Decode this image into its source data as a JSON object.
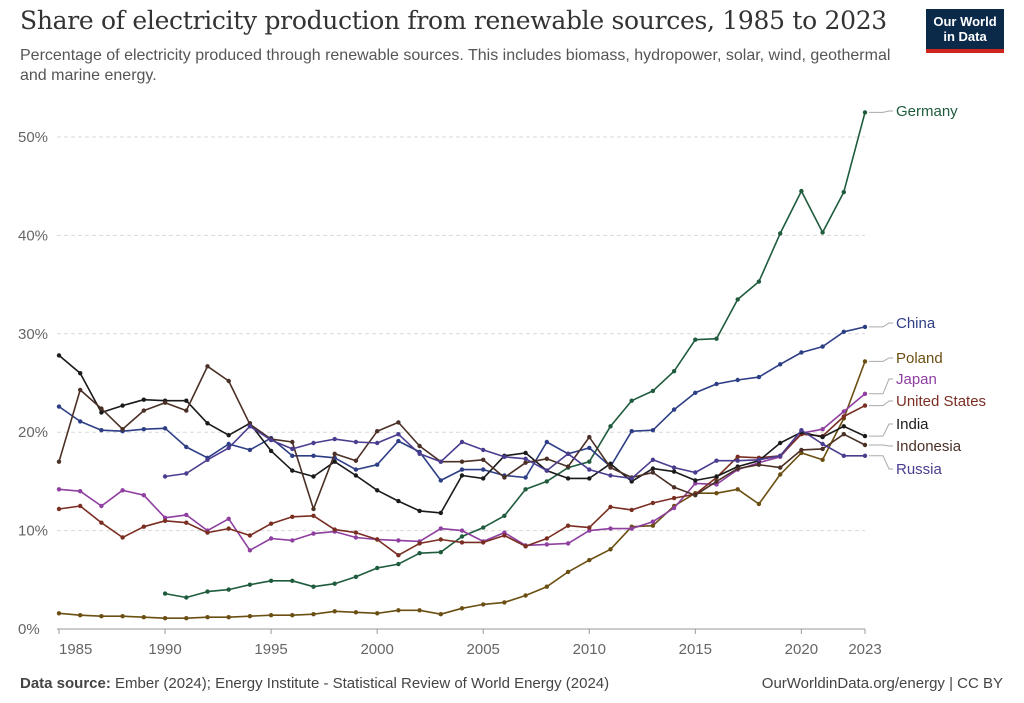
{
  "header": {
    "title": "Share of electricity production from renewable sources, 1985 to 2023",
    "subtitle": "Percentage of electricity produced through renewable sources. This includes biomass, hydropower, solar, wind, geothermal and marine energy.",
    "logo_line1": "Our World",
    "logo_line2": "in Data"
  },
  "footer": {
    "source_label": "Data source:",
    "source_text": " Ember (2024); Energy Institute - Statistical Review of World Energy (2024)",
    "credit": "OurWorldinData.org/energy | CC BY"
  },
  "colors": {
    "grid": "#d9d9d9",
    "axis": "#999999",
    "logo_bg": "#0b2a4a",
    "logo_accent": "#ce261e"
  },
  "chart_data": {
    "type": "line",
    "title": "Share of electricity production from renewable sources, 1985 to 2023",
    "ylim": [
      0,
      55
    ],
    "xlim": [
      1985,
      2023
    ],
    "y_ticks": [
      0,
      10,
      20,
      30,
      40,
      50
    ],
    "y_tick_labels": [
      "0%",
      "10%",
      "20%",
      "30%",
      "40%",
      "50%"
    ],
    "x_ticks": [
      1985,
      1990,
      1995,
      2000,
      2005,
      2010,
      2015,
      2020,
      2023
    ],
    "x_tick_labels": [
      "1985",
      "1990",
      "1995",
      "2000",
      "2005",
      "2010",
      "2015",
      "2020",
      "2023"
    ],
    "grid": "horizontal dashed",
    "legend": "right end-of-line labels",
    "series": [
      {
        "name": "Germany",
        "color": "#1f5c3d",
        "x": [
          1990,
          1991,
          1992,
          1993,
          1994,
          1995,
          1996,
          1997,
          1998,
          1999,
          2000,
          2001,
          2002,
          2003,
          2004,
          2005,
          2006,
          2007,
          2008,
          2009,
          2010,
          2011,
          2012,
          2013,
          2014,
          2015,
          2016,
          2017,
          2018,
          2019,
          2020,
          2021,
          2022,
          2023
        ],
        "values": [
          3.6,
          3.2,
          3.8,
          4.0,
          4.5,
          4.9,
          4.9,
          4.3,
          4.6,
          5.3,
          6.2,
          6.6,
          7.7,
          7.8,
          9.4,
          10.3,
          11.5,
          14.2,
          15.0,
          16.4,
          17.0,
          20.6,
          23.2,
          24.2,
          26.2,
          29.4,
          29.5,
          33.5,
          35.3,
          40.2,
          44.5,
          40.3,
          44.4,
          52.5
        ]
      },
      {
        "name": "China",
        "color": "#2d3e85",
        "x": [
          1985,
          1986,
          1987,
          1988,
          1989,
          1990,
          1991,
          1992,
          1993,
          1994,
          1995,
          1996,
          1997,
          1998,
          1999,
          2000,
          2001,
          2002,
          2003,
          2004,
          2005,
          2006,
          2007,
          2008,
          2009,
          2010,
          2011,
          2012,
          2013,
          2014,
          2015,
          2016,
          2017,
          2018,
          2019,
          2020,
          2021,
          2022,
          2023
        ],
        "values": [
          22.6,
          21.1,
          20.2,
          20.1,
          20.3,
          20.4,
          18.5,
          17.4,
          18.8,
          18.2,
          19.4,
          17.6,
          17.6,
          17.4,
          16.2,
          16.7,
          19.1,
          18.0,
          15.1,
          16.2,
          16.2,
          15.6,
          15.4,
          19.0,
          17.8,
          18.4,
          16.5,
          20.1,
          20.2,
          22.3,
          24.0,
          24.9,
          25.3,
          25.6,
          26.9,
          28.1,
          28.7,
          30.2,
          30.7
        ]
      },
      {
        "name": "Poland",
        "color": "#6b4f12",
        "x": [
          1985,
          1986,
          1987,
          1988,
          1989,
          1990,
          1991,
          1992,
          1993,
          1994,
          1995,
          1996,
          1997,
          1998,
          1999,
          2000,
          2001,
          2002,
          2003,
          2004,
          2005,
          2006,
          2007,
          2008,
          2009,
          2010,
          2011,
          2012,
          2013,
          2014,
          2015,
          2016,
          2017,
          2018,
          2019,
          2020,
          2021,
          2022,
          2023
        ],
        "values": [
          1.6,
          1.4,
          1.3,
          1.3,
          1.2,
          1.1,
          1.1,
          1.2,
          1.2,
          1.3,
          1.4,
          1.4,
          1.5,
          1.8,
          1.7,
          1.6,
          1.9,
          1.9,
          1.5,
          2.1,
          2.5,
          2.7,
          3.4,
          4.3,
          5.8,
          7.0,
          8.1,
          10.4,
          10.5,
          12.5,
          13.8,
          13.8,
          14.2,
          12.7,
          15.7,
          17.9,
          17.2,
          21.4,
          27.2
        ]
      },
      {
        "name": "Japan",
        "color": "#8e3fa0",
        "x": [
          1985,
          1986,
          1987,
          1988,
          1989,
          1990,
          1991,
          1992,
          1993,
          1994,
          1995,
          1996,
          1997,
          1998,
          1999,
          2000,
          2001,
          2002,
          2003,
          2004,
          2005,
          2006,
          2007,
          2008,
          2009,
          2010,
          2011,
          2012,
          2013,
          2014,
          2015,
          2016,
          2017,
          2018,
          2019,
          2020,
          2021,
          2022,
          2023
        ],
        "values": [
          14.2,
          14.0,
          12.5,
          14.1,
          13.6,
          11.3,
          11.6,
          10.0,
          11.2,
          8.0,
          9.2,
          9.0,
          9.7,
          9.9,
          9.3,
          9.1,
          9.0,
          8.9,
          10.2,
          10.0,
          8.9,
          9.8,
          8.5,
          8.6,
          8.7,
          10.0,
          10.2,
          10.2,
          10.9,
          12.3,
          14.8,
          14.7,
          16.2,
          16.9,
          17.5,
          19.9,
          20.3,
          22.1,
          23.9
        ]
      },
      {
        "name": "United States",
        "color": "#7a2e22",
        "x": [
          1985,
          1986,
          1987,
          1988,
          1989,
          1990,
          1991,
          1992,
          1993,
          1994,
          1995,
          1996,
          1997,
          1998,
          1999,
          2000,
          2001,
          2002,
          2003,
          2004,
          2005,
          2006,
          2007,
          2008,
          2009,
          2010,
          2011,
          2012,
          2013,
          2014,
          2015,
          2016,
          2017,
          2018,
          2019,
          2020,
          2021,
          2022,
          2023
        ],
        "values": [
          12.2,
          12.5,
          10.8,
          9.3,
          10.4,
          11.0,
          10.8,
          9.8,
          10.2,
          9.5,
          10.7,
          11.4,
          11.5,
          10.1,
          9.8,
          9.1,
          7.5,
          8.7,
          9.1,
          8.8,
          8.8,
          9.5,
          8.4,
          9.2,
          10.5,
          10.3,
          12.4,
          12.1,
          12.8,
          13.3,
          13.7,
          15.4,
          17.5,
          17.4,
          17.6,
          19.8,
          19.6,
          21.6,
          22.7
        ]
      },
      {
        "name": "India",
        "color": "#1a1a1a",
        "x": [
          1985,
          1986,
          1987,
          1988,
          1989,
          1990,
          1991,
          1992,
          1993,
          1994,
          1995,
          1996,
          1997,
          1998,
          1999,
          2000,
          2001,
          2002,
          2003,
          2004,
          2005,
          2006,
          2007,
          2008,
          2009,
          2010,
          2011,
          2012,
          2013,
          2014,
          2015,
          2016,
          2017,
          2018,
          2019,
          2020,
          2021,
          2022,
          2023
        ],
        "values": [
          27.8,
          26.0,
          22.0,
          22.7,
          23.3,
          23.2,
          23.2,
          20.9,
          19.7,
          20.9,
          18.1,
          16.1,
          15.5,
          17.0,
          15.6,
          14.1,
          13.0,
          12.0,
          11.8,
          15.6,
          15.3,
          17.6,
          17.9,
          16.1,
          15.3,
          15.3,
          16.8,
          15.0,
          16.3,
          16.0,
          15.1,
          15.5,
          16.5,
          17.1,
          18.9,
          20.0,
          19.5,
          20.6,
          19.6
        ]
      },
      {
        "name": "Indonesia",
        "color": "#4a3026",
        "x": [
          1985,
          1986,
          1987,
          1988,
          1989,
          1990,
          1991,
          1992,
          1993,
          1994,
          1995,
          1996,
          1997,
          1998,
          1999,
          2000,
          2001,
          2002,
          2003,
          2004,
          2005,
          2006,
          2007,
          2008,
          2009,
          2010,
          2011,
          2012,
          2013,
          2014,
          2015,
          2016,
          2017,
          2018,
          2019,
          2020,
          2021,
          2022,
          2023
        ],
        "values": [
          17.0,
          24.3,
          22.4,
          20.3,
          22.2,
          23.0,
          22.2,
          26.7,
          25.2,
          20.8,
          19.3,
          19.0,
          12.2,
          17.8,
          17.1,
          20.1,
          21.0,
          18.6,
          17.0,
          17.0,
          17.2,
          15.4,
          16.9,
          17.3,
          16.5,
          19.5,
          16.4,
          15.4,
          15.9,
          14.4,
          13.6,
          15.0,
          16.3,
          16.7,
          16.4,
          18.2,
          18.3,
          19.8,
          18.7
        ]
      },
      {
        "name": "Russia",
        "color": "#4a3d8f",
        "x": [
          1990,
          1991,
          1992,
          1993,
          1994,
          1995,
          1996,
          1997,
          1998,
          1999,
          2000,
          2001,
          2002,
          2003,
          2004,
          2005,
          2006,
          2007,
          2008,
          2009,
          2010,
          2011,
          2012,
          2013,
          2014,
          2015,
          2016,
          2017,
          2018,
          2019,
          2020,
          2021,
          2022,
          2023
        ],
        "values": [
          15.5,
          15.8,
          17.2,
          18.4,
          20.6,
          19.2,
          18.3,
          18.9,
          19.3,
          19.0,
          18.9,
          19.8,
          17.8,
          17.0,
          19.0,
          18.2,
          17.5,
          17.3,
          16.1,
          17.8,
          16.2,
          15.6,
          15.3,
          17.2,
          16.4,
          15.9,
          17.1,
          17.1,
          17.2,
          17.6,
          20.2,
          18.8,
          17.6,
          17.6
        ]
      }
    ],
    "end_labels": [
      {
        "name": "Germany"
      },
      {
        "name": "China"
      },
      {
        "name": "Poland"
      },
      {
        "name": "Japan"
      },
      {
        "name": "United States"
      },
      {
        "name": "India"
      },
      {
        "name": "Indonesia"
      },
      {
        "name": "Russia"
      }
    ]
  }
}
